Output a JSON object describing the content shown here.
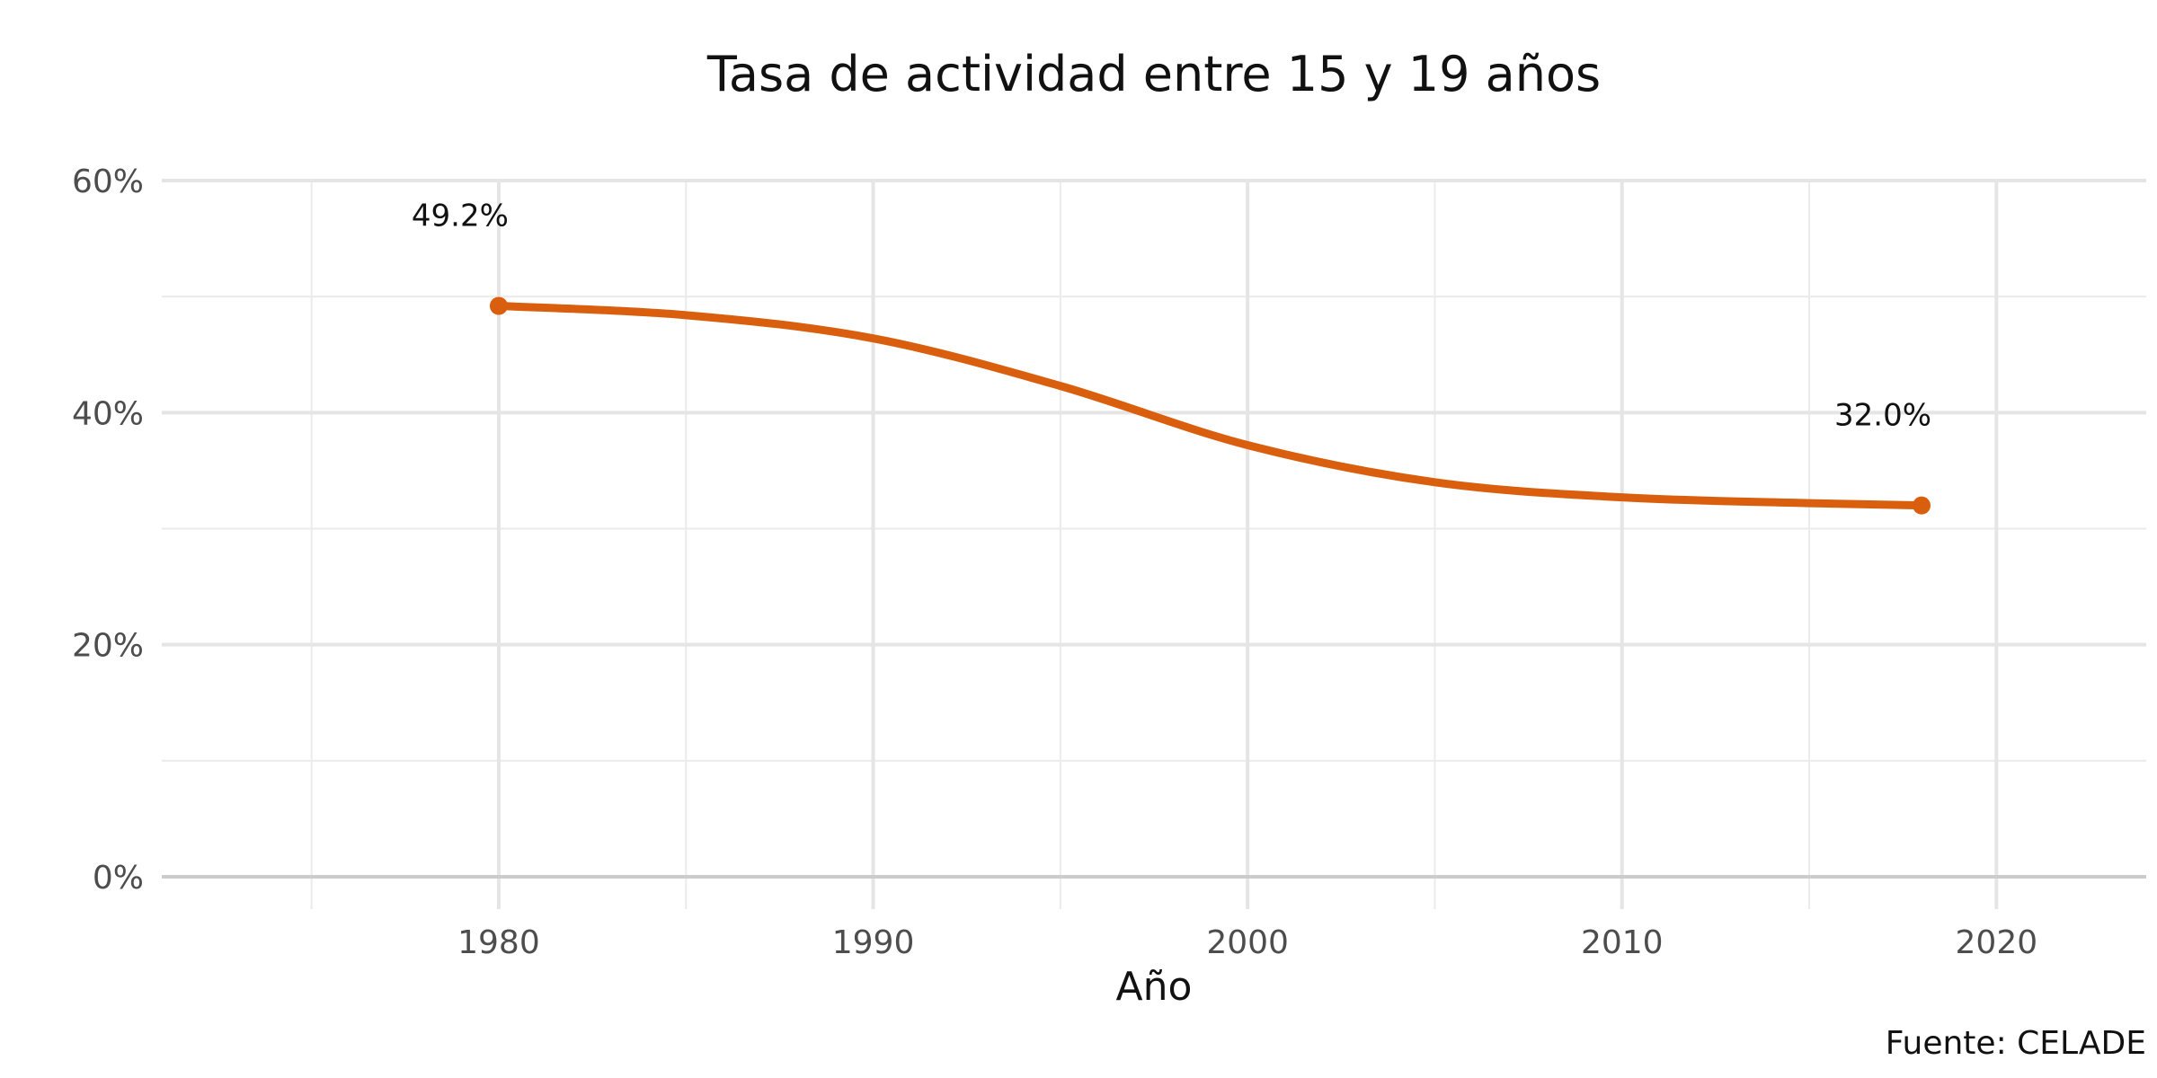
{
  "chart_data": {
    "type": "line",
    "title": "Tasa de actividad entre 15 y 19 años",
    "xlabel": "Año",
    "ylabel": "",
    "caption": "Fuente: CELADE",
    "xlim": [
      1971,
      2024
    ],
    "ylim": [
      0,
      60
    ],
    "x_ticks": [
      1980,
      1990,
      2000,
      2010,
      2020
    ],
    "x_tick_labels": [
      "1980",
      "1990",
      "2000",
      "2010",
      "2020"
    ],
    "y_ticks": [
      0,
      20,
      40,
      60
    ],
    "y_tick_labels": [
      "0%",
      "20%",
      "40%",
      "60%"
    ],
    "grid": true,
    "legend": "none",
    "series": [
      {
        "color": "#D95F0E",
        "x": [
          1980,
          1985,
          1990,
          1995,
          2000,
          2005,
          2010,
          2015,
          2018
        ],
        "values": [
          49.2,
          48.4,
          46.4,
          42.3,
          37.2,
          34.0,
          32.7,
          32.2,
          32.0
        ]
      }
    ],
    "endpoints": [
      {
        "x": 1980,
        "y": 49.2,
        "label": "49.2%"
      },
      {
        "x": 2018,
        "y": 32.0,
        "label": "32.0%"
      }
    ]
  }
}
